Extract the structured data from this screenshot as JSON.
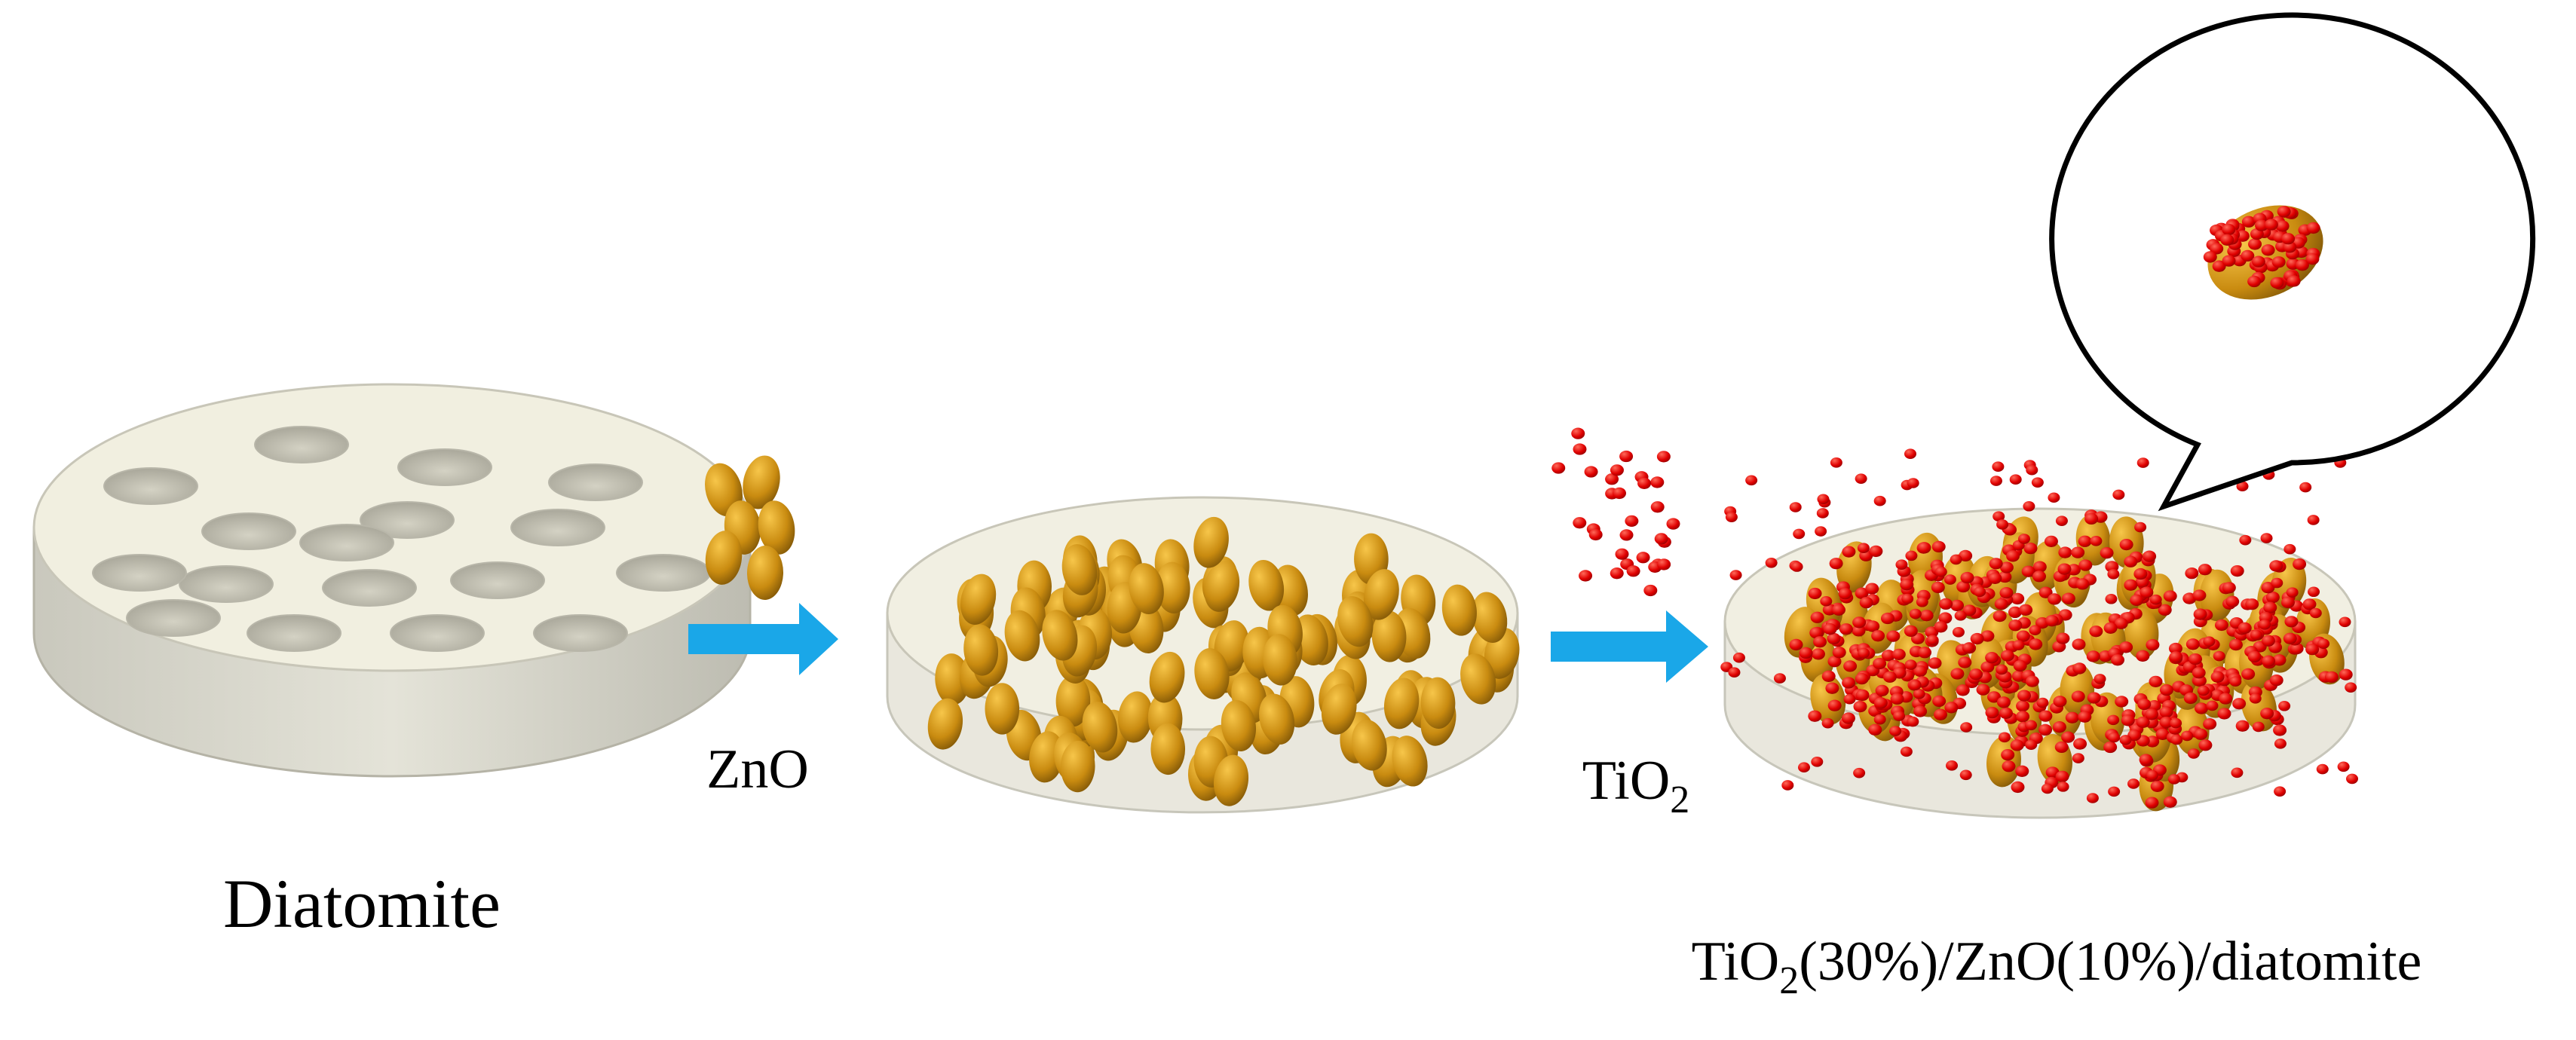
{
  "labels": {
    "diatomite": "Diatomite",
    "zno": "ZnO",
    "tio2": {
      "base": "TiO",
      "sub": "2"
    },
    "product": {
      "base": "TiO",
      "sub": "2",
      "rest": "(30%)/ZnO(10%)/diatomite"
    }
  }
}
